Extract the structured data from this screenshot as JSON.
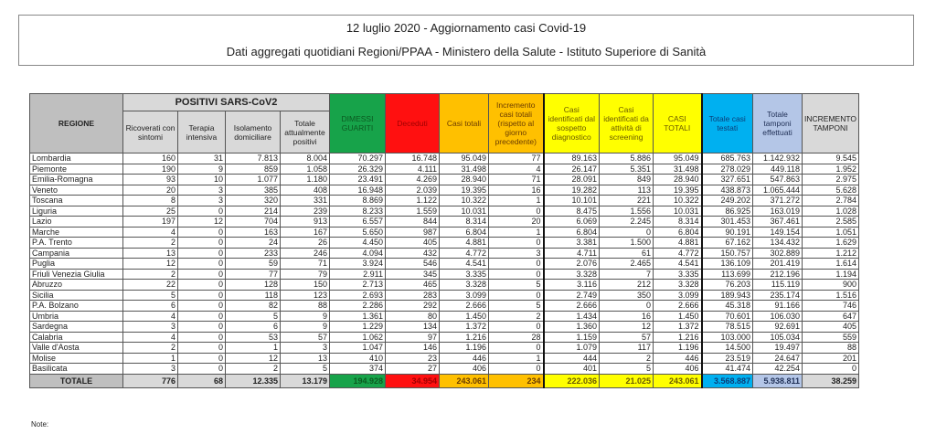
{
  "title": "12 luglio 2020 - Aggiornamento casi Covid-19",
  "subtitle": "Dati aggregati quotidiani Regioni/PPAA - Ministero della Salute - Istituto Superiore di Sanità",
  "group_header": "POSITIVI SARS-CoV2",
  "region_header": "REGIONE",
  "columns": [
    "Ricoverati con sintomi",
    "Terapia intensiva",
    "Isolamento domiciliare",
    "Totale attualmente positivi",
    "DIMESSI GUARITI",
    "Deceduti",
    "Casi totali",
    "Incremento casi totali (rispetto al giorno precedente)",
    "Casi identificati dal sospetto diagnostico",
    "Casi identificati da attività di screening",
    "CASI TOTALI",
    "Totale casi testati",
    "Totale tamponi effettuati",
    "INCREMENTO TAMPONI"
  ],
  "colors": {
    "green": "#17a34a",
    "red": "#ff1010",
    "orange": "#ffc000",
    "yellow": "#ffff00",
    "blue": "#00b0f0",
    "light_blue": "#b4c6e7",
    "gray": "#d9d9d9"
  },
  "rows": [
    {
      "region": "Lombardia",
      "values": [
        "160",
        "31",
        "7.813",
        "8.004",
        "70.297",
        "16.748",
        "95.049",
        "77",
        "89.163",
        "5.886",
        "95.049",
        "685.763",
        "1.142.932",
        "9.545"
      ]
    },
    {
      "region": "Piemonte",
      "values": [
        "190",
        "9",
        "859",
        "1.058",
        "26.329",
        "4.111",
        "31.498",
        "4",
        "26.147",
        "5.351",
        "31.498",
        "278.029",
        "449.118",
        "1.952"
      ]
    },
    {
      "region": "Emilia-Romagna",
      "values": [
        "93",
        "10",
        "1.077",
        "1.180",
        "23.491",
        "4.269",
        "28.940",
        "71",
        "28.091",
        "849",
        "28.940",
        "327.651",
        "547.863",
        "2.975"
      ]
    },
    {
      "region": "Veneto",
      "values": [
        "20",
        "3",
        "385",
        "408",
        "16.948",
        "2.039",
        "19.395",
        "16",
        "19.282",
        "113",
        "19.395",
        "438.873",
        "1.065.444",
        "5.628"
      ]
    },
    {
      "region": "Toscana",
      "values": [
        "8",
        "3",
        "320",
        "331",
        "8.869",
        "1.122",
        "10.322",
        "1",
        "10.101",
        "221",
        "10.322",
        "249.202",
        "371.272",
        "2.784"
      ]
    },
    {
      "region": "Liguria",
      "values": [
        "25",
        "0",
        "214",
        "239",
        "8.233",
        "1.559",
        "10.031",
        "0",
        "8.475",
        "1.556",
        "10.031",
        "86.925",
        "163.019",
        "1.028"
      ]
    },
    {
      "region": "Lazio",
      "values": [
        "197",
        "12",
        "704",
        "913",
        "6.557",
        "844",
        "8.314",
        "20",
        "6.069",
        "2.245",
        "8.314",
        "301.453",
        "367.461",
        "2.585"
      ]
    },
    {
      "region": "Marche",
      "values": [
        "4",
        "0",
        "163",
        "167",
        "5.650",
        "987",
        "6.804",
        "1",
        "6.804",
        "0",
        "6.804",
        "90.191",
        "149.154",
        "1.051"
      ]
    },
    {
      "region": "P.A. Trento",
      "values": [
        "2",
        "0",
        "24",
        "26",
        "4.450",
        "405",
        "4.881",
        "0",
        "3.381",
        "1.500",
        "4.881",
        "67.162",
        "134.432",
        "1.629"
      ]
    },
    {
      "region": "Campania",
      "values": [
        "13",
        "0",
        "233",
        "246",
        "4.094",
        "432",
        "4.772",
        "3",
        "4.711",
        "61",
        "4.772",
        "150.757",
        "302.889",
        "1.212"
      ]
    },
    {
      "region": "Puglia",
      "values": [
        "12",
        "0",
        "59",
        "71",
        "3.924",
        "546",
        "4.541",
        "0",
        "2.076",
        "2.465",
        "4.541",
        "136.109",
        "201.419",
        "1.614"
      ]
    },
    {
      "region": "Friuli Venezia Giulia",
      "values": [
        "2",
        "0",
        "77",
        "79",
        "2.911",
        "345",
        "3.335",
        "0",
        "3.328",
        "7",
        "3.335",
        "113.699",
        "212.196",
        "1.194"
      ]
    },
    {
      "region": "Abruzzo",
      "values": [
        "22",
        "0",
        "128",
        "150",
        "2.713",
        "465",
        "3.328",
        "5",
        "3.116",
        "212",
        "3.328",
        "76.203",
        "115.119",
        "900"
      ]
    },
    {
      "region": "Sicilia",
      "values": [
        "5",
        "0",
        "118",
        "123",
        "2.693",
        "283",
        "3.099",
        "0",
        "2.749",
        "350",
        "3.099",
        "189.943",
        "235.174",
        "1.516"
      ]
    },
    {
      "region": "P.A. Bolzano",
      "values": [
        "6",
        "0",
        "82",
        "88",
        "2.286",
        "292",
        "2.666",
        "5",
        "2.666",
        "0",
        "2.666",
        "45.318",
        "91.166",
        "746"
      ]
    },
    {
      "region": "Umbria",
      "values": [
        "4",
        "0",
        "5",
        "9",
        "1.361",
        "80",
        "1.450",
        "2",
        "1.434",
        "16",
        "1.450",
        "70.601",
        "106.030",
        "647"
      ]
    },
    {
      "region": "Sardegna",
      "values": [
        "3",
        "0",
        "6",
        "9",
        "1.229",
        "134",
        "1.372",
        "0",
        "1.360",
        "12",
        "1.372",
        "78.515",
        "92.691",
        "405"
      ]
    },
    {
      "region": "Calabria",
      "values": [
        "4",
        "0",
        "53",
        "57",
        "1.062",
        "97",
        "1.216",
        "28",
        "1.159",
        "57",
        "1.216",
        "103.000",
        "105.034",
        "559"
      ]
    },
    {
      "region": "Valle d'Aosta",
      "values": [
        "2",
        "0",
        "1",
        "3",
        "1.047",
        "146",
        "1.196",
        "0",
        "1.079",
        "117",
        "1.196",
        "14.500",
        "19.497",
        "88"
      ]
    },
    {
      "region": "Molise",
      "values": [
        "1",
        "0",
        "12",
        "13",
        "410",
        "23",
        "446",
        "1",
        "444",
        "2",
        "446",
        "23.519",
        "24.647",
        "201"
      ]
    },
    {
      "region": "Basilicata",
      "values": [
        "3",
        "0",
        "2",
        "5",
        "374",
        "27",
        "406",
        "0",
        "401",
        "5",
        "406",
        "41.474",
        "42.254",
        "0"
      ]
    }
  ],
  "total": {
    "label": "TOTALE",
    "values": [
      "776",
      "68",
      "12.335",
      "13.179",
      "194.928",
      "34.954",
      "243.061",
      "234",
      "222.036",
      "21.025",
      "243.061",
      "3.568.887",
      "5.938.811",
      "38.259"
    ]
  },
  "note": "Note:"
}
